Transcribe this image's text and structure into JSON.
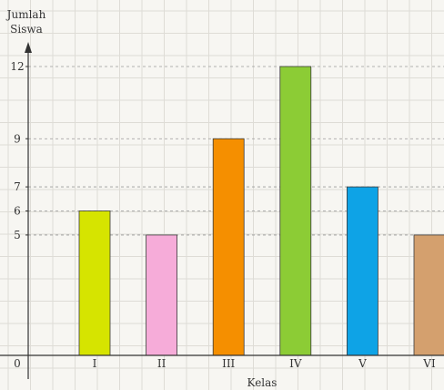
{
  "chart_data": {
    "type": "bar",
    "ylabel_lines": [
      "Jumlah",
      "Siswa"
    ],
    "xlabel": "Kelas",
    "categories": [
      "I",
      "II",
      "III",
      "IV",
      "V",
      "VI"
    ],
    "values": [
      6,
      5,
      9,
      12,
      7,
      5
    ],
    "bar_colors": [
      "#d6e400",
      "#f6acd9",
      "#f58f00",
      "#8ccc35",
      "#0ea3e6",
      "#d4a06e"
    ],
    "y_ticks": [
      0,
      5,
      6,
      7,
      9,
      12
    ],
    "ylim": [
      0,
      12
    ],
    "guide_lines_at": [
      5,
      6,
      7,
      9,
      12
    ],
    "grid": true,
    "background": "#f7f6f2",
    "grid_color": "#dedcd6",
    "axis_color": "#333333"
  }
}
